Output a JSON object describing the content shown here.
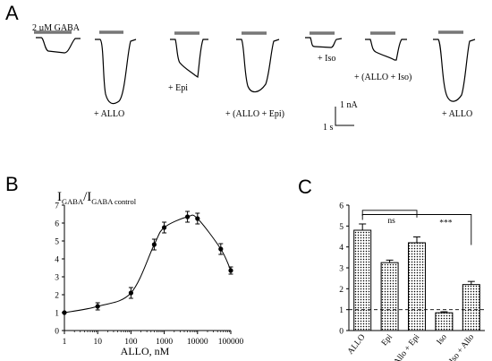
{
  "panels": {
    "A": {
      "letter": "A",
      "labels": {
        "gaba": "2 µM GABA",
        "allo1": "+ ALLO",
        "epi": "+ Epi",
        "allo_epi": "+ (ALLO + Epi)",
        "iso": "+ Iso",
        "allo_iso": "+ (ALLO + Iso)",
        "allo2": "+ ALLO",
        "scale_nA": "1 nA",
        "scale_s": "1 s"
      },
      "traces": [
        {
          "name": "control",
          "peak": 0.3
        },
        {
          "name": "allo-1",
          "peak": 1.0
        },
        {
          "name": "epi",
          "peak": 0.55
        },
        {
          "name": "allo-epi",
          "peak": 0.78
        },
        {
          "name": "iso",
          "peak": 0.22
        },
        {
          "name": "allo-iso",
          "peak": 0.4
        },
        {
          "name": "allo-2",
          "peak": 1.0
        }
      ]
    },
    "B": {
      "letter": "B"
    },
    "C": {
      "letter": "C"
    }
  },
  "chart_data": [
    {
      "panel": "B",
      "type": "scatter",
      "ylabel": "I_GABA/I_GABA control",
      "ylabel_main": "I",
      "ylabel_sub1": "GABA",
      "ylabel_slash": "/I",
      "ylabel_sub2": "GABA control",
      "xlabel": "ALLO, nM",
      "x_scale": "log",
      "xlim": [
        1,
        100000
      ],
      "ylim": [
        0,
        7
      ],
      "x_ticks": [
        "1",
        "10",
        "100",
        "1000",
        "10000",
        "100000"
      ],
      "y_ticks": [
        "0",
        "1",
        "2",
        "3",
        "4",
        "5",
        "6",
        "7"
      ],
      "x": [
        1,
        10,
        100,
        500,
        1000,
        5000,
        10000,
        50000,
        100000
      ],
      "y": [
        1.0,
        1.35,
        2.1,
        4.8,
        5.75,
        6.35,
        6.25,
        4.55,
        3.35
      ],
      "err": [
        0.0,
        0.2,
        0.3,
        0.3,
        0.3,
        0.3,
        0.3,
        0.3,
        0.2
      ],
      "fit_curve": true
    },
    {
      "panel": "C",
      "type": "bar",
      "categories": [
        "ALLO",
        "Epi",
        "Allo + Epi",
        "Iso",
        "Iso + Allo"
      ],
      "values": [
        4.8,
        3.25,
        4.2,
        0.85,
        2.2
      ],
      "err": [
        0.3,
        0.12,
        0.28,
        0.05,
        0.15
      ],
      "ylim": [
        0,
        6
      ],
      "y_ticks": [
        "0",
        "1",
        "2",
        "3",
        "4",
        "5",
        "6"
      ],
      "reference_line": 1,
      "significance": [
        {
          "from": "ALLO",
          "to": "Allo + Epi",
          "label": "ns"
        },
        {
          "from": "ALLO",
          "to": "Iso + Allo",
          "label": "***"
        }
      ]
    }
  ]
}
